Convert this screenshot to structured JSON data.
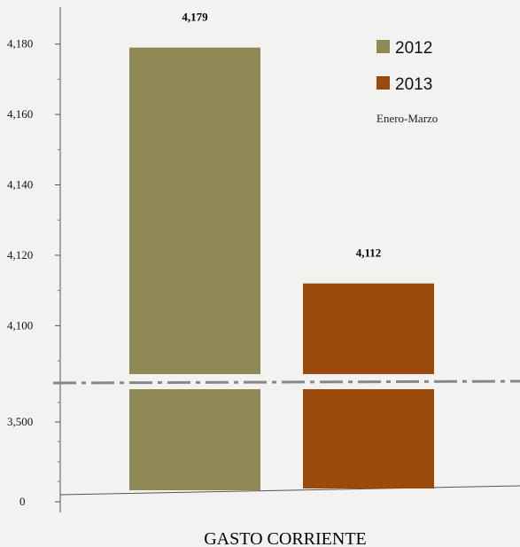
{
  "chart_data": {
    "type": "bar",
    "axis": "broken",
    "categories": [
      "GASTO CORRIENTE"
    ],
    "xlabel": "GASTO CORRIENTE",
    "ylabel": "",
    "title": "",
    "series": [
      {
        "name": "2012",
        "values": [
          4179
        ],
        "color": "#8f8a55",
        "label": "4,179"
      },
      {
        "name": "2013",
        "values": [
          4112
        ],
        "color": "#9a4a0c",
        "label": "4,112"
      }
    ],
    "yticks_upper": [
      4100,
      4120,
      4140,
      4160,
      4180
    ],
    "ytick_labels_upper": [
      "4,100",
      "4,120",
      "4,140",
      "4,160",
      "4,180"
    ],
    "yticks_lower": [
      0,
      3500
    ],
    "ytick_labels_lower": [
      "0",
      "3,500"
    ],
    "ylim_upper": [
      4088,
      4190
    ],
    "ylim_lower": [
      0,
      4088
    ],
    "legend_position": "top-right",
    "legend_note": "Enero-Marzo",
    "break_line_color": "#888888"
  }
}
